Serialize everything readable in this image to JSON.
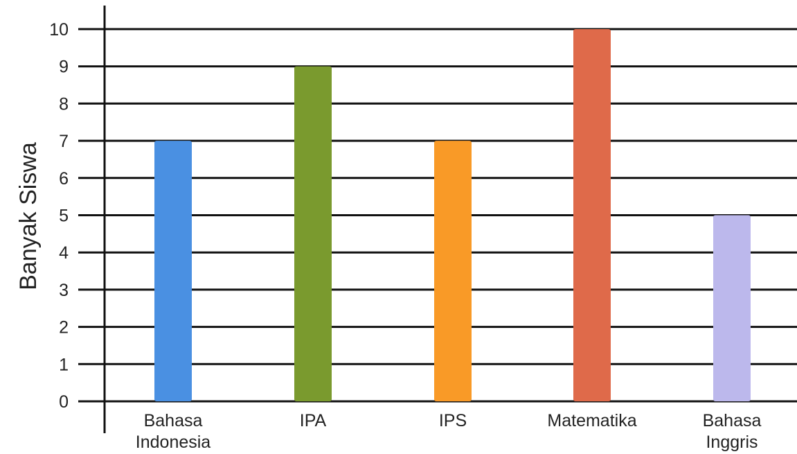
{
  "chart_data": {
    "type": "bar",
    "categories": [
      [
        "Bahasa",
        "Indonesia"
      ],
      [
        "IPA"
      ],
      [
        "IPS"
      ],
      [
        "Matematika"
      ],
      [
        "Bahasa",
        "Inggris"
      ]
    ],
    "values": [
      7,
      9,
      7,
      10,
      5
    ],
    "bar_colors": [
      "#4a90e2",
      "#7a9a2e",
      "#f99a27",
      "#df6a4a",
      "#bcb8ec"
    ],
    "xlabel": "",
    "ylabel": "Banyak Siswa",
    "ylim": [
      0,
      10
    ],
    "yticks": [
      "0",
      "1",
      "2",
      "3",
      "4",
      "5",
      "6",
      "7",
      "8",
      "9",
      "10"
    ],
    "grid": true,
    "legend": "none"
  }
}
